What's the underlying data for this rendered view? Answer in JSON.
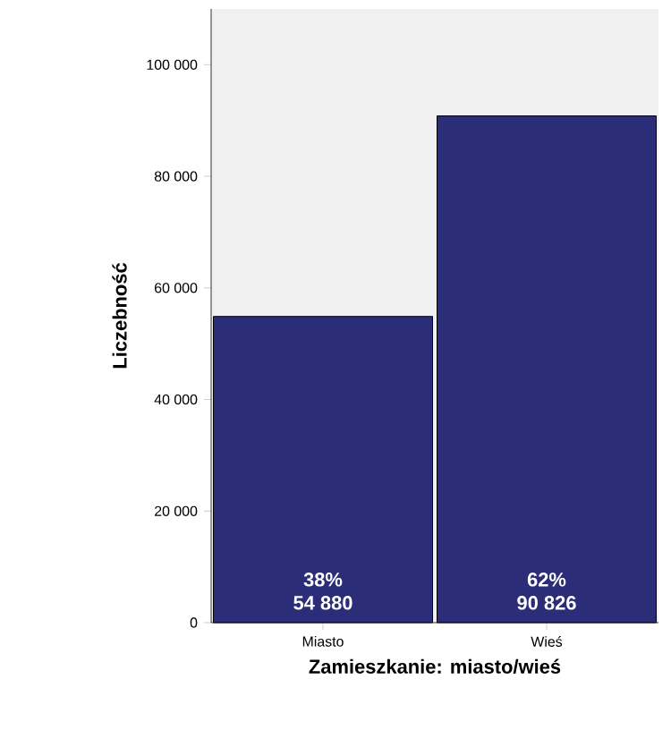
{
  "chart_data": {
    "type": "bar",
    "xlabel": "Zamieszkanie: miasto/wieś",
    "ylabel": "Liczebność",
    "categories": [
      "Miasto",
      "Wieś"
    ],
    "values": [
      54880,
      90826
    ],
    "value_labels": [
      "54 880",
      "90 826"
    ],
    "annotations": [
      "38%",
      "62%"
    ],
    "color": "#2b2d78",
    "ylim": [
      0,
      110000
    ],
    "yticks": [
      0,
      {
        "value": 20000,
        "label": "20 000"
      },
      {
        "value": 40000,
        "label": "40 000"
      },
      {
        "value": 60000,
        "label": "60 000"
      },
      {
        "value": 80000,
        "label": "80 000"
      },
      {
        "value": 100000,
        "label": "100 000"
      }
    ],
    "grid": false
  }
}
